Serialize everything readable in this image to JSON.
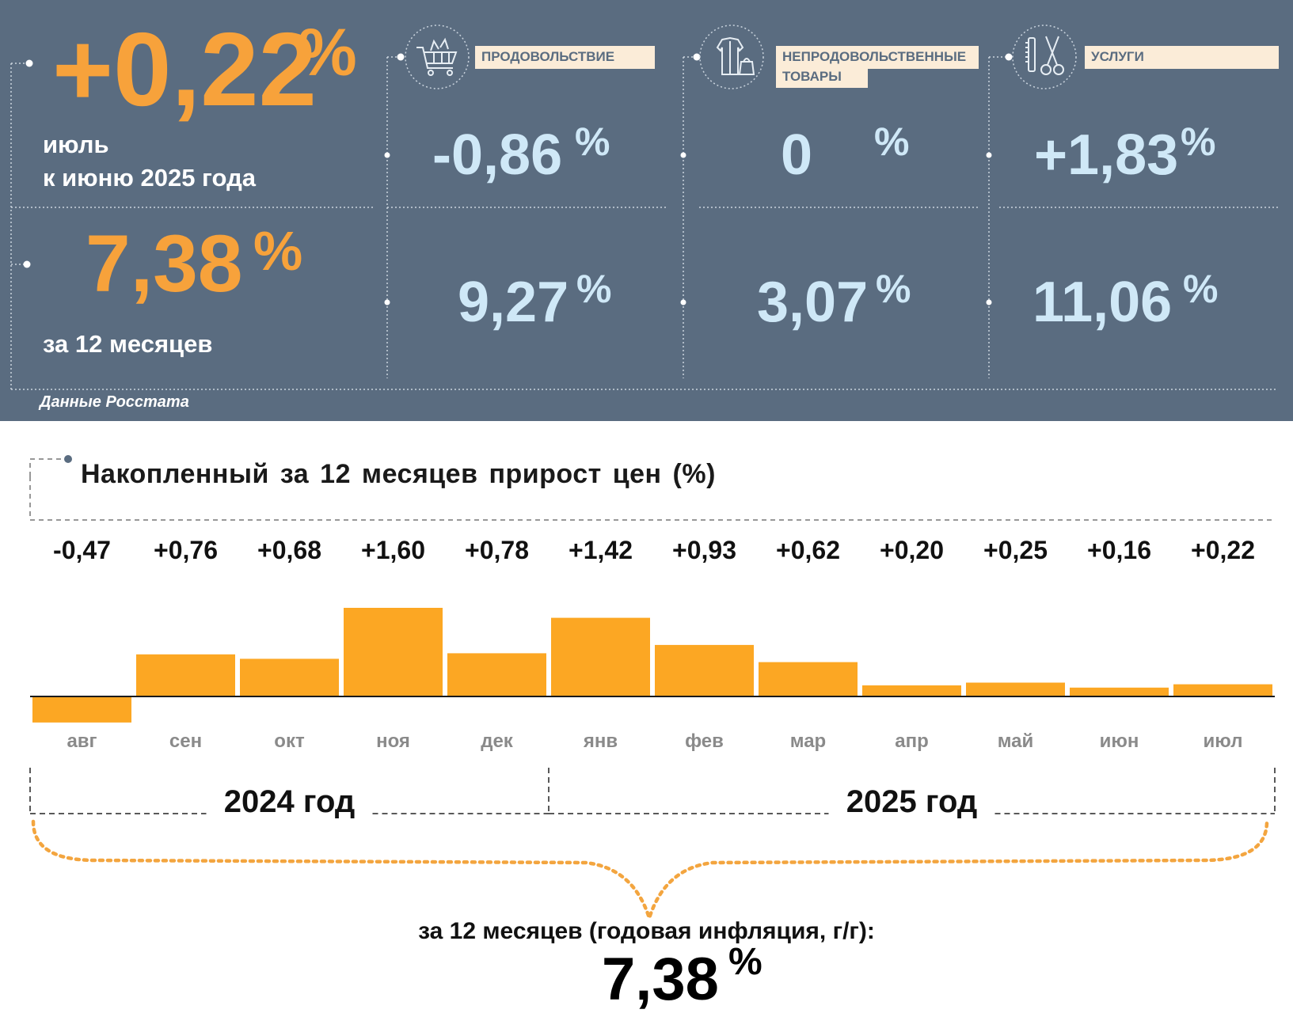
{
  "summary": {
    "monthly": {
      "value": "+0,22",
      "unit": "%",
      "label_line1": "июль",
      "label_line2": "к июню 2025 года"
    },
    "annual": {
      "value": "7,38",
      "unit": "%",
      "label": "за 12 месяцев"
    },
    "source": "Данные Росстата"
  },
  "categories": [
    {
      "id": "food",
      "label": "ПРОДОВОЛЬСТВИЕ",
      "icon": "shopping-cart-icon",
      "monthly": "-0,86",
      "annual": "9,27",
      "unit": "%"
    },
    {
      "id": "nonfood",
      "label_line1": "НЕПРОДОВОЛЬСТВЕННЫЕ",
      "label_line2": "ТОВАРЫ",
      "icon": "clothing-icon",
      "monthly": "0",
      "annual": "3,07",
      "unit": "%"
    },
    {
      "id": "services",
      "label": "УСЛУГИ",
      "icon": "scissors-comb-icon",
      "monthly": "+1,83",
      "annual": "11,06",
      "unit": "%"
    }
  ],
  "colors": {
    "panel": "#5a6c80",
    "accent": "#f7a23b",
    "bar": "#fca723",
    "value_blue": "#cfe8f7",
    "label_bg": "#fbecd8"
  },
  "chart_data": {
    "type": "bar",
    "title": "Накопленный за 12 месяцев прирост цен (%)",
    "categories": [
      "авг",
      "сен",
      "окт",
      "ноя",
      "дек",
      "янв",
      "фев",
      "мар",
      "апр",
      "май",
      "июн",
      "июл"
    ],
    "values": [
      -0.47,
      0.76,
      0.68,
      1.6,
      0.78,
      1.42,
      0.93,
      0.62,
      0.2,
      0.25,
      0.16,
      0.22
    ],
    "value_labels": [
      "-0,47",
      "+0,76",
      "+0,68",
      "+1,60",
      "+0,78",
      "+1,42",
      "+0,93",
      "+0,62",
      "+0,20",
      "+0,25",
      "+0,16",
      "+0,22"
    ],
    "groups": [
      {
        "label": "2024 год",
        "from": "авг",
        "to": "дек"
      },
      {
        "label": "2025 год",
        "from": "янв",
        "to": "июл"
      }
    ],
    "total_caption": "за 12 месяцев (годовая инфляция, г/г):",
    "total_value": "7,38",
    "total_unit": "%",
    "grid": false
  }
}
